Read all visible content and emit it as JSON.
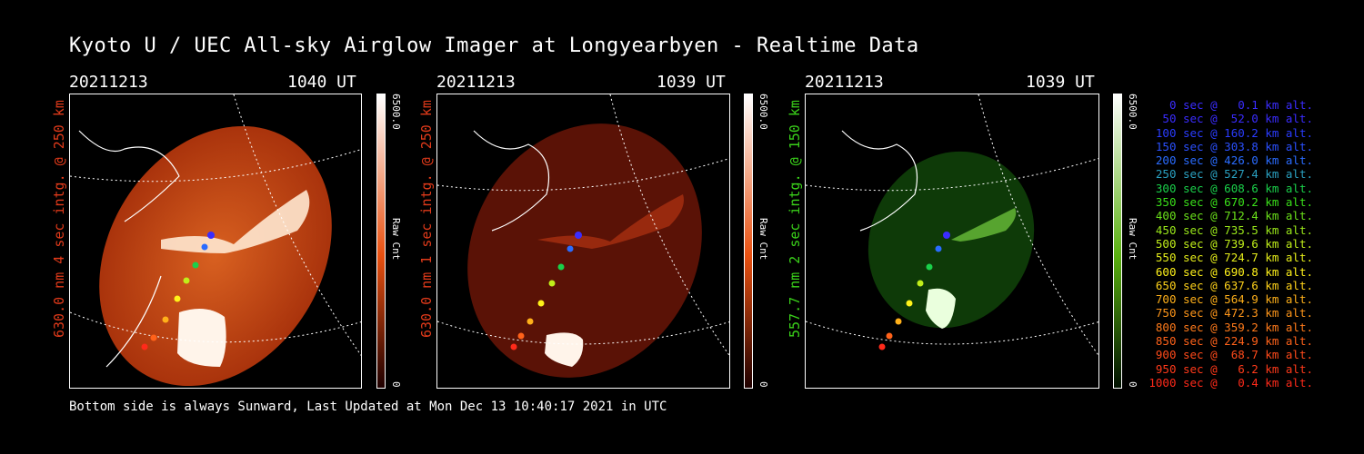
{
  "title": "Kyoto U / UEC All-sky Airglow Imager at Longyearbyen - Realtime Data",
  "footer": "Bottom side is always Sunward, Last Updated at Mon Dec 13 10:40:17 2021 in UTC",
  "panels": [
    {
      "date": "20211213",
      "time": "1040 UT",
      "side_label": "630.0 nm 4 sec intg. @ 250 km",
      "label_color": "#e03a1a",
      "scale_max": "6500.0",
      "scale_min": "0",
      "scale_unit": "Raw Cnt"
    },
    {
      "date": "20211213",
      "time": "1039 UT",
      "side_label": "630.0 nm 1 sec intg. @ 250 km",
      "label_color": "#e03a1a",
      "scale_max": "6500.0",
      "scale_min": "0",
      "scale_unit": "Raw Cnt"
    },
    {
      "date": "20211213",
      "time": "1039 UT",
      "side_label": "557.7 nm 2 sec intg. @ 150 km",
      "label_color": "#3ad11a",
      "scale_max": "6500.0",
      "scale_min": "0",
      "scale_unit": "Raw Cnt"
    }
  ],
  "legend": [
    {
      "text": "0 sec @   0.1 km alt.",
      "color": "#3a2cff"
    },
    {
      "text": "50 sec @  52.0 km alt.",
      "color": "#3a2cff"
    },
    {
      "text": "100 sec @ 160.2 km alt.",
      "color": "#2a3cff"
    },
    {
      "text": "150 sec @ 303.8 km alt.",
      "color": "#2a50ff"
    },
    {
      "text": "200 sec @ 426.0 km alt.",
      "color": "#2a6cff"
    },
    {
      "text": "250 sec @ 527.4 km alt.",
      "color": "#2aa0c0"
    },
    {
      "text": "300 sec @ 608.6 km alt.",
      "color": "#1ad04a"
    },
    {
      "text": "350 sec @ 670.2 km alt.",
      "color": "#3ae01a"
    },
    {
      "text": "400 sec @ 712.4 km alt.",
      "color": "#6ae01a"
    },
    {
      "text": "450 sec @ 735.5 km alt.",
      "color": "#9ae81a"
    },
    {
      "text": "500 sec @ 739.6 km alt.",
      "color": "#c0ee1a"
    },
    {
      "text": "550 sec @ 724.7 km alt.",
      "color": "#e6ee1a"
    },
    {
      "text": "600 sec @ 690.8 km alt.",
      "color": "#fff21a"
    },
    {
      "text": "650 sec @ 637.6 km alt.",
      "color": "#ffd21a"
    },
    {
      "text": "700 sec @ 564.9 km alt.",
      "color": "#ffb01a"
    },
    {
      "text": "750 sec @ 472.3 km alt.",
      "color": "#ff961a"
    },
    {
      "text": "800 sec @ 359.2 km alt.",
      "color": "#ff7a1a"
    },
    {
      "text": "850 sec @ 224.9 km alt.",
      "color": "#ff621a"
    },
    {
      "text": "900 sec @  68.7 km alt.",
      "color": "#ff4a1a"
    },
    {
      "text": "950 sec @   6.2 km alt.",
      "color": "#ff3a1a"
    },
    {
      "text": "1000 sec @   0.4 km alt.",
      "color": "#ff2a1a"
    }
  ],
  "colors": {
    "red_scale_top": "#ffffff",
    "red_scale_mid": "#e85010",
    "green_scale_mid": "#5ab010"
  },
  "icons": {
    "panel_image": "all-sky-airglow-image",
    "trajectory": "rocket-trajectory-markers",
    "coastlines": "map-coastline-lines"
  }
}
